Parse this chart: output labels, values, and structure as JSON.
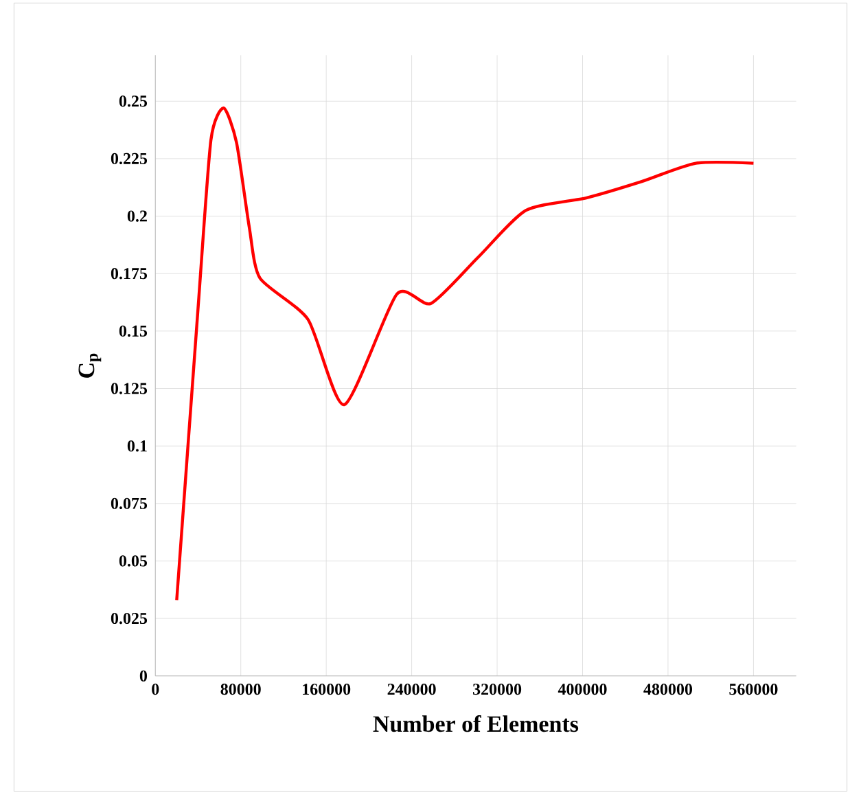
{
  "chart_data": {
    "type": "line",
    "xlabel": "Number of Elements",
    "ylabel": "C$_{p}$",
    "xlim": [
      0,
      600000
    ],
    "xticks": [
      0,
      80000,
      160000,
      240000,
      320000,
      400000,
      480000,
      560000
    ],
    "ylim": [
      0,
      0.27
    ],
    "yticks": [
      0,
      0.025,
      0.05,
      0.075,
      0.1,
      0.125,
      0.15,
      0.175,
      0.2,
      0.225,
      0.25
    ],
    "grid": true,
    "marker": "none",
    "line_style": "solid",
    "series": [
      {
        "color": "#ff0000",
        "x": [
          20000,
          40000,
          52000,
          64000,
          76000,
          88000,
          98000,
          143000,
          177000,
          226000,
          258000,
          302000,
          347000,
          404000,
          455000,
          506000,
          560000
        ],
        "values": [
          0.033,
          0.16,
          0.233,
          0.247,
          0.232,
          0.195,
          0.173,
          0.155,
          0.118,
          0.166,
          0.162,
          0.182,
          0.2025,
          0.208,
          0.215,
          0.223,
          0.223
        ]
      }
    ]
  }
}
